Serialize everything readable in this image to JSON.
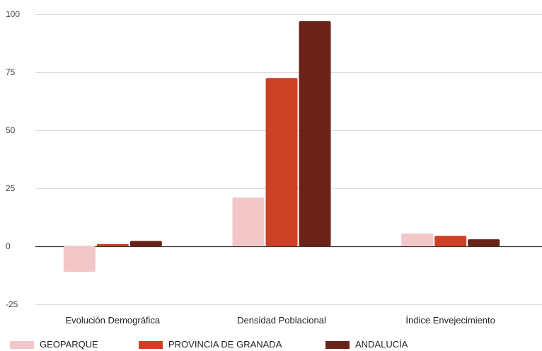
{
  "chart_data": {
    "type": "bar",
    "categories": [
      "Evolución Demográfica",
      "Densidad Poblacional",
      "Índice Envejecimiento"
    ],
    "series": [
      {
        "name": "GEOPARQUE",
        "color": "#f3c7c7",
        "values": [
          -11,
          21,
          5.5
        ]
      },
      {
        "name": "PROVINCIA DE GRANADA",
        "color": "#cc4125",
        "values": [
          1,
          72.5,
          4.5
        ]
      },
      {
        "name": "ANDALUCÍA",
        "color": "#6b2218",
        "values": [
          2.3,
          97,
          3
        ]
      }
    ],
    "title": "",
    "xlabel": "",
    "ylabel": "",
    "ylim": [
      -25,
      100
    ],
    "yticks": [
      -25,
      0,
      25,
      50,
      75,
      100
    ],
    "grid": true,
    "legend_position": "bottom-left"
  }
}
